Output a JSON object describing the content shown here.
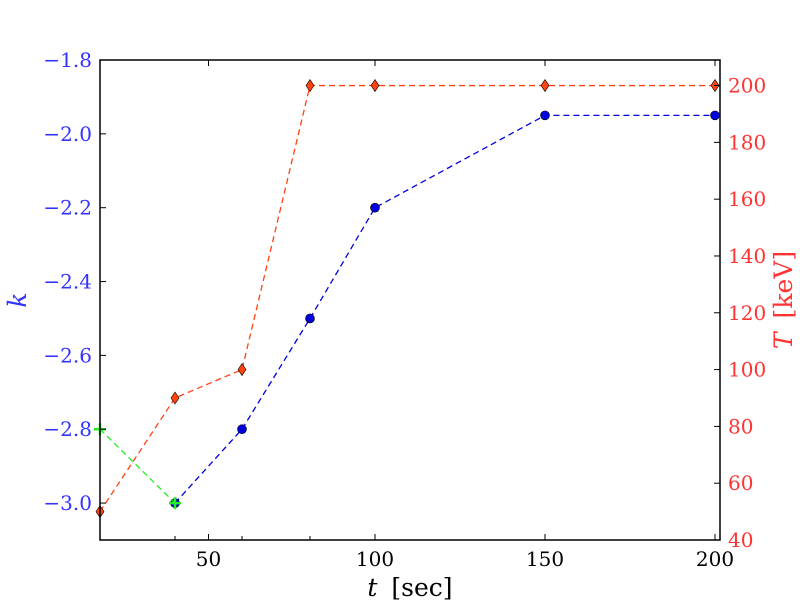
{
  "chart_data": {
    "type": "line",
    "x_axis": {
      "label_var": "t",
      "label_unit": "[sec]",
      "ticks": [
        50,
        100,
        150,
        200
      ],
      "tick_labels": [
        "50",
        "100",
        "150",
        "200"
      ],
      "tick_positions_axis": [
        20,
        40,
        60,
        80,
        100,
        150,
        200
      ]
    },
    "y_left": {
      "label": "k",
      "color": "#3333ff",
      "ylim": [
        -3.1,
        -1.8
      ],
      "ticks": [
        -1.8,
        -2.0,
        -2.2,
        -2.4,
        -2.6,
        -2.8,
        -3.0
      ],
      "tick_labels": [
        "−1.8",
        "−2.0",
        "−2.2",
        "−2.4",
        "−2.6",
        "−2.8",
        "−3.0"
      ]
    },
    "y_right": {
      "label_var": "T",
      "label_unit": "[keV]",
      "color": "#ff3333",
      "ylim": [
        40,
        209
      ],
      "ticks": [
        40,
        60,
        80,
        100,
        120,
        140,
        160,
        180,
        200
      ],
      "tick_labels": [
        "40",
        "60",
        "80",
        "100",
        "120",
        "140",
        "160",
        "180",
        "200"
      ]
    },
    "grid": false,
    "series": [
      {
        "axis": "left",
        "color": "#0000dd",
        "marker": "circle",
        "line": "dashed",
        "x": [
          40,
          60,
          80,
          100,
          150,
          200
        ],
        "y": [
          -3.0,
          -2.8,
          -2.5,
          -2.2,
          -1.95,
          -1.95
        ]
      },
      {
        "axis": "left",
        "color": "#22ee22",
        "marker": "plus",
        "line": "dashed",
        "x": [
          20,
          40
        ],
        "y": [
          -2.8,
          -3.0
        ]
      },
      {
        "axis": "right",
        "color": "#ff4411",
        "marker": "diamond",
        "line": "dashed",
        "x": [
          20,
          40,
          60,
          80,
          100,
          150,
          200
        ],
        "y": [
          50,
          90,
          100,
          200,
          200,
          200,
          200
        ]
      }
    ]
  }
}
